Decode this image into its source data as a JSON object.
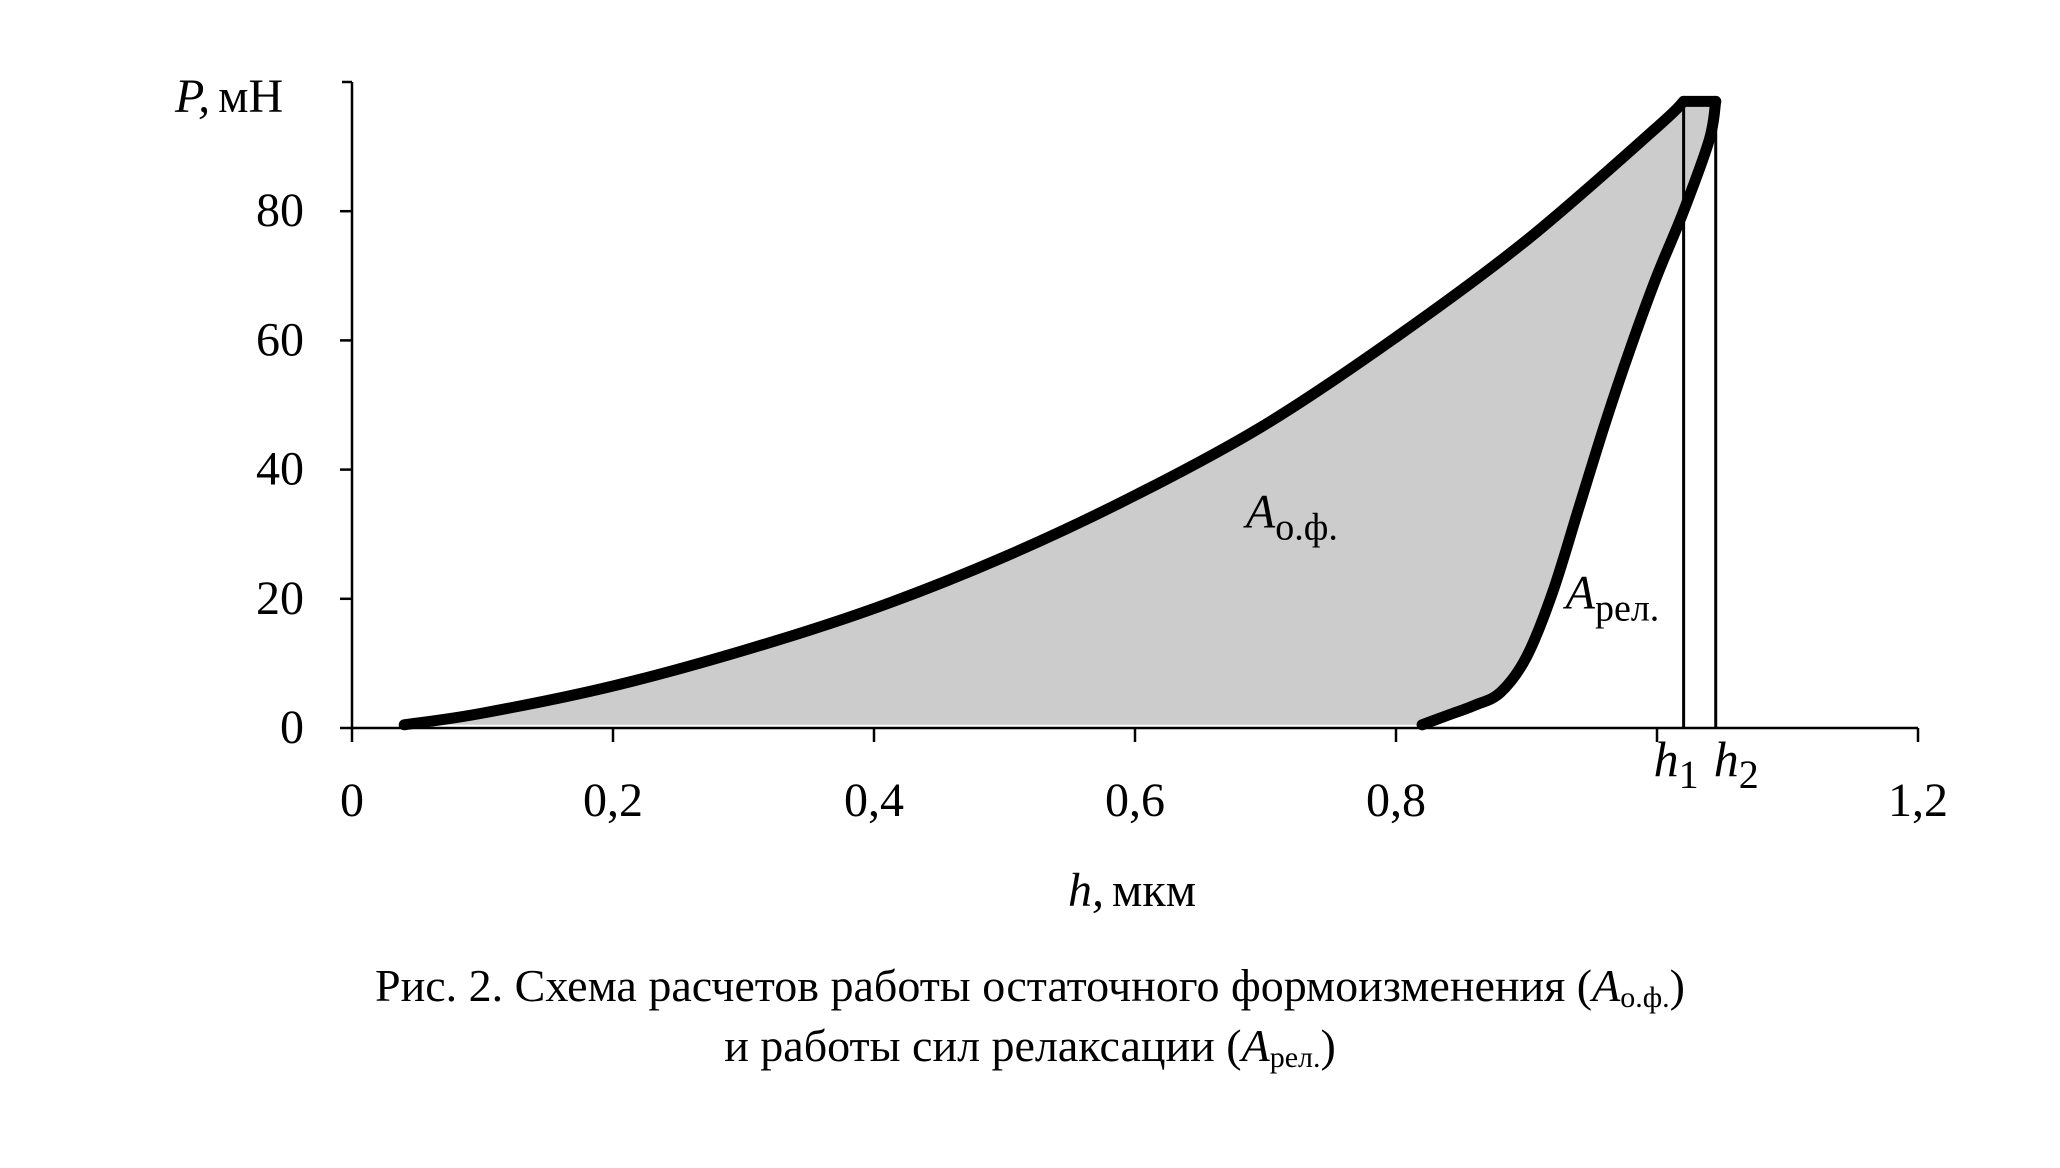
{
  "chart_data": {
    "type": "area",
    "y_label_var": "P,",
    "y_label_unit": "мН",
    "x_label_var": "h,",
    "x_label_unit": "мкм",
    "x_ticks": [
      {
        "value": 0,
        "label": "0"
      },
      {
        "value": 0.2,
        "label": "0,2"
      },
      {
        "value": 0.4,
        "label": "0,4"
      },
      {
        "value": 0.6,
        "label": "0,6"
      },
      {
        "value": 0.8,
        "label": "0,8"
      },
      {
        "value": 1.2,
        "label": "1,2"
      }
    ],
    "y_ticks": [
      0,
      20,
      40,
      60,
      80
    ],
    "xlim": [
      0,
      1.2
    ],
    "ylim": [
      0,
      100
    ],
    "loading_curve": [
      [
        0.04,
        0.5
      ],
      [
        0.1,
        2.3
      ],
      [
        0.2,
        6.5
      ],
      [
        0.3,
        12
      ],
      [
        0.4,
        18.5
      ],
      [
        0.5,
        26.5
      ],
      [
        0.6,
        36
      ],
      [
        0.7,
        47
      ],
      [
        0.8,
        60.5
      ],
      [
        0.9,
        75.5
      ],
      [
        1.0,
        93
      ],
      [
        1.0204,
        97
      ]
    ],
    "hold_segment": [
      [
        1.0204,
        97
      ],
      [
        1.045,
        97
      ]
    ],
    "unloading_curve": [
      [
        1.045,
        97
      ],
      [
        1.04,
        91
      ],
      [
        1.0204,
        80
      ],
      [
        1.0,
        70
      ],
      [
        0.98,
        59
      ],
      [
        0.96,
        47
      ],
      [
        0.94,
        34
      ],
      [
        0.92,
        21
      ],
      [
        0.9,
        11
      ],
      [
        0.88,
        5.5
      ],
      [
        0.86,
        3.5
      ],
      [
        0.84,
        2
      ],
      [
        0.82,
        0.5
      ]
    ],
    "markers": [
      {
        "value": 1.0204,
        "name": "h",
        "sub": "1"
      },
      {
        "value": 1.045,
        "name": "h",
        "sub": "2"
      }
    ],
    "annotations": [
      {
        "name": "A",
        "sub": "о.ф.",
        "x": 0.685,
        "y": 31
      },
      {
        "name": "A",
        "sub": "рел.",
        "x": 0.93,
        "y": 18.5
      }
    ],
    "fill_color": "#cccccc",
    "line_color": "#000000"
  },
  "caption": {
    "line1_prefix": "Рис. 2. Схема расчетов работы остаточного формоизменения (",
    "line1_A": "A",
    "line1_sub": "о.ф.",
    "line1_suffix": ")",
    "line2_prefix": "и работы сил релаксации (",
    "line2_A": "A",
    "line2_sub": "рел.",
    "line2_suffix": ")"
  }
}
